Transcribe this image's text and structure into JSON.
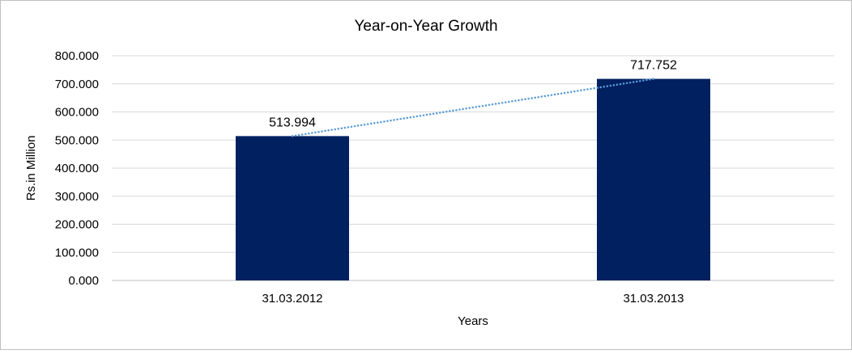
{
  "chart_data": {
    "type": "bar",
    "title": "Year-on-Year Growth",
    "xlabel": "Years",
    "ylabel": "Rs.in Million",
    "categories": [
      "31.03.2012",
      "31.03.2013"
    ],
    "values": [
      513.994,
      717.752
    ],
    "data_labels": [
      "513.994",
      "717.752"
    ],
    "ylim": [
      0,
      800
    ],
    "yticks": [
      "0.000",
      "100.000",
      "200.000",
      "300.000",
      "400.000",
      "500.000",
      "600.000",
      "700.000",
      "800.000"
    ],
    "grid": true,
    "legend": "none",
    "trendline": "linear (dotted)",
    "colors": {
      "bar": "#002060",
      "trendline": "#5B9BD5",
      "grid": "#D9D9D9",
      "border": "#BFBFBF"
    }
  }
}
